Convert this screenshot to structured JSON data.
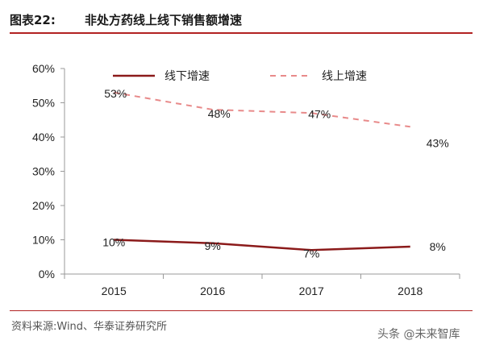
{
  "header": {
    "fig_label": "图表22:",
    "title": "非处方药线上线下销售额增速"
  },
  "source": "资料来源:Wind、华泰证券研究所",
  "watermark": "头条 @未来智库",
  "chart_data": {
    "type": "line",
    "categories": [
      "2015",
      "2016",
      "2017",
      "2018"
    ],
    "yticks": [
      "0%",
      "10%",
      "20%",
      "30%",
      "40%",
      "50%",
      "60%"
    ],
    "ylim": [
      0,
      60
    ],
    "series": [
      {
        "name": "线下增速",
        "values": [
          10,
          9,
          7,
          8
        ],
        "labels": [
          "10%",
          "9%",
          "7%",
          "8%"
        ],
        "color": "#8b1a1a",
        "style": "solid"
      },
      {
        "name": "线上增速",
        "values": [
          53,
          48,
          47,
          43
        ],
        "labels": [
          "53%",
          "48%",
          "47%",
          "43%"
        ],
        "color": "#e88a8a",
        "style": "dashed"
      }
    ],
    "legend": "top",
    "grid": false
  }
}
